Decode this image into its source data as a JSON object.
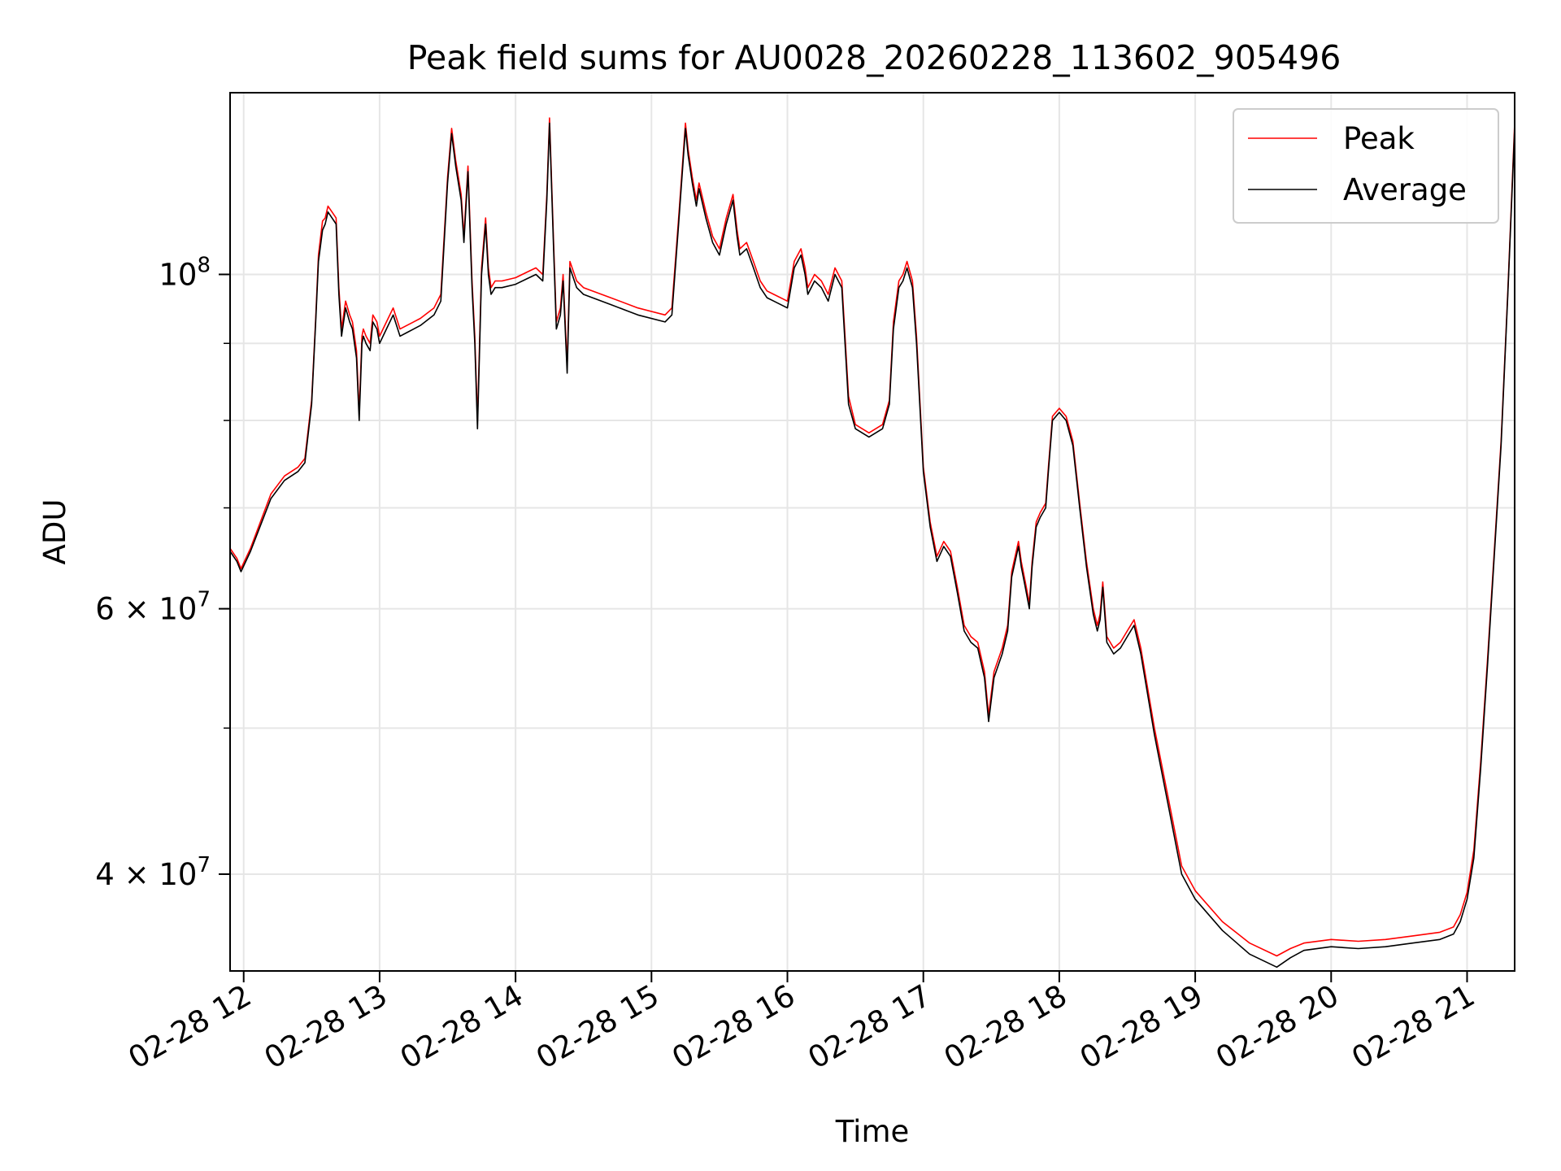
{
  "chart_data": {
    "type": "line",
    "title": "Peak field sums for AU0028_20260228_113602_905496",
    "xlabel": "Time",
    "ylabel": "ADU",
    "x_unit": "hours (2026-02-28)",
    "xlim": [
      11.9,
      21.35
    ],
    "ylim": [
      34500000,
      132000000
    ],
    "yscale": "log",
    "grid": true,
    "legend_position": "top-right",
    "x_ticks": [
      {
        "value": 12,
        "label": "02-28 12"
      },
      {
        "value": 13,
        "label": "02-28 13"
      },
      {
        "value": 14,
        "label": "02-28 14"
      },
      {
        "value": 15,
        "label": "02-28 15"
      },
      {
        "value": 16,
        "label": "02-28 16"
      },
      {
        "value": 17,
        "label": "02-28 17"
      },
      {
        "value": 18,
        "label": "02-28 18"
      },
      {
        "value": 19,
        "label": "02-28 19"
      },
      {
        "value": 20,
        "label": "02-28 20"
      },
      {
        "value": 21,
        "label": "02-28 21"
      }
    ],
    "y_major_ticks": [
      {
        "value": 100000000,
        "base": "10",
        "exp": "8"
      },
      {
        "value": 60000000,
        "base": "6 × 10",
        "exp": "7"
      },
      {
        "value": 40000000,
        "base": "4 × 10",
        "exp": "7"
      }
    ],
    "y_minor_ticks": [
      90000000,
      80000000,
      70000000,
      60000000,
      50000000,
      40000000
    ],
    "series": [
      {
        "name": "Average",
        "color": "#000000",
        "x": [
          11.9,
          11.95,
          11.98,
          12.05,
          12.2,
          12.3,
          12.4,
          12.45,
          12.5,
          12.53,
          12.55,
          12.58,
          12.6,
          12.62,
          12.65,
          12.68,
          12.7,
          12.72,
          12.75,
          12.78,
          12.8,
          12.83,
          12.85,
          12.87,
          12.88,
          12.9,
          12.93,
          12.95,
          12.98,
          13.0,
          13.05,
          13.1,
          13.15,
          13.2,
          13.3,
          13.4,
          13.45,
          13.5,
          13.53,
          13.56,
          13.6,
          13.62,
          13.65,
          13.68,
          13.7,
          13.72,
          13.75,
          13.78,
          13.8,
          13.82,
          13.85,
          13.9,
          14.0,
          14.1,
          14.15,
          14.2,
          14.23,
          14.25,
          14.28,
          14.3,
          14.33,
          14.35,
          14.38,
          14.4,
          14.45,
          14.5,
          14.7,
          14.9,
          15.1,
          15.15,
          15.2,
          15.25,
          15.27,
          15.3,
          15.33,
          15.35,
          15.4,
          15.45,
          15.5,
          15.55,
          15.6,
          15.63,
          15.65,
          15.7,
          15.75,
          15.8,
          15.85,
          15.9,
          16.0,
          16.05,
          16.1,
          16.13,
          16.15,
          16.2,
          16.25,
          16.3,
          16.35,
          16.4,
          16.45,
          16.5,
          16.6,
          16.7,
          16.75,
          16.78,
          16.82,
          16.85,
          16.88,
          16.92,
          16.95,
          17.0,
          17.05,
          17.1,
          17.15,
          17.2,
          17.25,
          17.3,
          17.35,
          17.4,
          17.45,
          17.48,
          17.52,
          17.58,
          17.62,
          17.65,
          17.7,
          17.72,
          17.75,
          17.78,
          17.8,
          17.83,
          17.86,
          17.9,
          17.92,
          17.95,
          18.0,
          18.05,
          18.1,
          18.15,
          18.2,
          18.25,
          18.28,
          18.3,
          18.32,
          18.35,
          18.4,
          18.45,
          18.5,
          18.55,
          18.6,
          18.7,
          18.8,
          18.9,
          19.0,
          19.2,
          19.4,
          19.6,
          19.7,
          19.8,
          20.0,
          20.2,
          20.4,
          20.6,
          20.8,
          20.9,
          20.95,
          21.0,
          21.05,
          21.1,
          21.15,
          21.2,
          21.25,
          21.3,
          21.35
        ],
        "values": [
          65500000,
          64500000,
          63500000,
          65500000,
          71000000,
          73000000,
          74000000,
          75000000,
          82000000,
          93000000,
          102000000,
          107000000,
          108000000,
          110000000,
          109000000,
          108000000,
          97000000,
          91000000,
          95000000,
          93000000,
          92000000,
          88000000,
          80000000,
          90000000,
          91000000,
          90000000,
          89000000,
          93000000,
          92000000,
          90000000,
          92000000,
          94000000,
          91000000,
          91500000,
          92500000,
          94000000,
          96000000,
          115000000,
          124000000,
          118000000,
          112000000,
          105000000,
          117000000,
          98000000,
          90000000,
          79000000,
          100000000,
          108000000,
          100000000,
          97000000,
          98000000,
          98000000,
          98500000,
          99500000,
          100000000,
          99000000,
          112000000,
          126000000,
          104000000,
          92000000,
          94000000,
          99000000,
          86000000,
          101000000,
          98000000,
          97000000,
          95500000,
          94000000,
          93000000,
          94000000,
          108000000,
          125000000,
          120000000,
          115000000,
          111000000,
          114000000,
          109000000,
          105000000,
          103000000,
          108000000,
          112000000,
          106000000,
          103000000,
          104000000,
          101000000,
          98000000,
          96500000,
          96000000,
          95000000,
          101000000,
          103000000,
          100000000,
          97000000,
          99000000,
          98000000,
          96000000,
          100000000,
          98000000,
          82000000,
          79000000,
          78000000,
          79000000,
          82000000,
          92000000,
          98000000,
          99000000,
          101000000,
          98000000,
          90000000,
          74000000,
          68000000,
          64500000,
          66000000,
          65000000,
          61500000,
          58000000,
          57000000,
          56500000,
          54000000,
          50500000,
          54000000,
          56000000,
          58000000,
          63000000,
          66000000,
          64000000,
          62000000,
          60000000,
          64000000,
          68000000,
          69000000,
          70000000,
          74000000,
          80000000,
          81000000,
          80000000,
          77000000,
          70000000,
          64000000,
          59500000,
          58000000,
          59000000,
          62000000,
          57000000,
          56000000,
          56500000,
          57500000,
          58500000,
          56000000,
          49500000,
          44500000,
          40000000,
          38500000,
          36700000,
          35400000,
          34700000,
          35200000,
          35600000,
          35800000,
          35700000,
          35800000,
          36000000,
          36200000,
          36500000,
          37200000,
          38500000,
          41000000,
          47000000,
          55000000,
          65000000,
          77000000,
          97000000,
          125000000
        ]
      },
      {
        "name": "Peak",
        "color": "#ff0000",
        "x": [
          11.9,
          11.95,
          11.98,
          12.05,
          12.2,
          12.3,
          12.4,
          12.45,
          12.5,
          12.53,
          12.55,
          12.58,
          12.6,
          12.62,
          12.65,
          12.68,
          12.7,
          12.72,
          12.75,
          12.78,
          12.8,
          12.83,
          12.85,
          12.87,
          12.88,
          12.9,
          12.93,
          12.95,
          12.98,
          13.0,
          13.05,
          13.1,
          13.15,
          13.2,
          13.3,
          13.4,
          13.45,
          13.5,
          13.53,
          13.56,
          13.6,
          13.62,
          13.65,
          13.68,
          13.7,
          13.72,
          13.75,
          13.78,
          13.8,
          13.82,
          13.85,
          13.9,
          14.0,
          14.1,
          14.15,
          14.2,
          14.23,
          14.25,
          14.28,
          14.3,
          14.33,
          14.35,
          14.38,
          14.4,
          14.45,
          14.5,
          14.7,
          14.9,
          15.1,
          15.15,
          15.2,
          15.25,
          15.27,
          15.3,
          15.33,
          15.35,
          15.4,
          15.45,
          15.5,
          15.55,
          15.6,
          15.63,
          15.65,
          15.7,
          15.75,
          15.8,
          15.85,
          15.9,
          16.0,
          16.05,
          16.1,
          16.13,
          16.15,
          16.2,
          16.25,
          16.3,
          16.35,
          16.4,
          16.45,
          16.5,
          16.6,
          16.7,
          16.75,
          16.78,
          16.82,
          16.85,
          16.88,
          16.92,
          16.95,
          17.0,
          17.05,
          17.1,
          17.15,
          17.2,
          17.25,
          17.3,
          17.35,
          17.4,
          17.45,
          17.48,
          17.52,
          17.58,
          17.62,
          17.65,
          17.7,
          17.72,
          17.75,
          17.78,
          17.8,
          17.83,
          17.86,
          17.9,
          17.92,
          17.95,
          18.0,
          18.05,
          18.1,
          18.15,
          18.2,
          18.25,
          18.28,
          18.3,
          18.32,
          18.35,
          18.4,
          18.45,
          18.5,
          18.55,
          18.6,
          18.7,
          18.8,
          18.9,
          19.0,
          19.2,
          19.4,
          19.6,
          19.7,
          19.8,
          20.0,
          20.2,
          20.4,
          20.6,
          20.8,
          20.9,
          20.95,
          21.0,
          21.05,
          21.1,
          21.15,
          21.2,
          21.25,
          21.3,
          21.35
        ],
        "values": [
          65800000,
          64800000,
          63800000,
          65800000,
          71500000,
          73500000,
          74500000,
          75500000,
          82500000,
          93500000,
          103000000,
          108500000,
          109000000,
          111000000,
          110000000,
          109000000,
          98000000,
          92000000,
          96000000,
          94000000,
          93000000,
          89000000,
          81000000,
          91000000,
          92000000,
          91000000,
          90000000,
          94000000,
          93000000,
          91000000,
          93000000,
          95000000,
          92000000,
          92500000,
          93500000,
          95000000,
          97000000,
          116000000,
          125000000,
          119000000,
          113000000,
          106000000,
          118000000,
          99000000,
          91000000,
          80000000,
          101000000,
          109000000,
          101000000,
          98000000,
          99000000,
          99000000,
          99500000,
          100500000,
          101000000,
          100000000,
          113000000,
          127000000,
          105000000,
          93000000,
          95000000,
          100000000,
          87000000,
          102000000,
          99000000,
          98000000,
          96500000,
          95000000,
          94000000,
          95000000,
          109000000,
          126000000,
          121000000,
          116000000,
          112000000,
          115000000,
          110000000,
          106000000,
          104000000,
          109000000,
          113000000,
          107000000,
          104000000,
          105000000,
          102000000,
          99000000,
          97500000,
          97000000,
          96000000,
          102000000,
          104000000,
          101000000,
          98000000,
          100000000,
          99000000,
          97000000,
          101000000,
          99000000,
          83000000,
          79500000,
          78500000,
          79500000,
          82500000,
          93000000,
          99000000,
          100000000,
          102000000,
          99000000,
          91000000,
          74500000,
          68500000,
          65000000,
          66500000,
          65500000,
          62000000,
          58500000,
          57500000,
          57000000,
          54500000,
          51000000,
          54500000,
          56500000,
          58500000,
          63500000,
          66500000,
          64500000,
          62500000,
          60500000,
          64500000,
          68500000,
          69500000,
          70500000,
          74500000,
          80500000,
          81500000,
          80500000,
          77500000,
          70500000,
          64500000,
          60000000,
          58500000,
          59500000,
          62500000,
          57500000,
          56500000,
          57000000,
          58000000,
          59000000,
          56500000,
          50000000,
          45000000,
          40500000,
          39000000,
          37200000,
          36000000,
          35300000,
          35700000,
          36000000,
          36200000,
          36100000,
          36200000,
          36400000,
          36600000,
          36900000,
          37600000,
          38900000,
          41500000,
          47500000,
          55500000,
          65500000,
          77500000,
          97500000,
          126000000
        ]
      }
    ]
  }
}
